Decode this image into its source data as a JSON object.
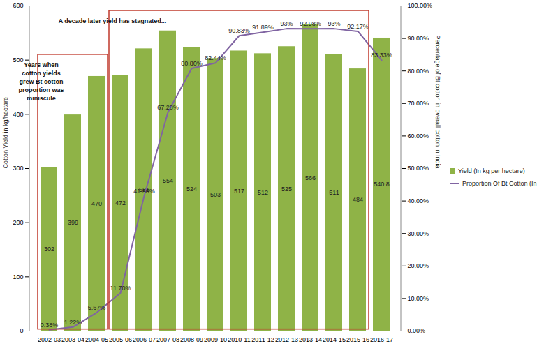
{
  "chart_data": {
    "type": "bar",
    "categories": [
      "2002-03",
      "2003-04",
      "2004-05",
      "2005-06",
      "2006-07",
      "2007-08",
      "2008-09",
      "2009-10",
      "2010-11",
      "2011-12",
      "2012-13",
      "2013-14",
      "2014-15",
      "2015-16",
      "2016-17"
    ],
    "series": [
      {
        "name": "Yield (In kg per hectare)",
        "type": "bar",
        "color": "#8fb347",
        "values": [
          302,
          399,
          470,
          472,
          521,
          554,
          524,
          503,
          517,
          512,
          525,
          566,
          511,
          484,
          540.8
        ]
      },
      {
        "name": "Proportion Of Bt Cotton (In %)",
        "type": "line",
        "axis": "y2",
        "color": "#8064a2",
        "values": [
          0.38,
          1.22,
          5.67,
          11.7,
          41.56,
          67.28,
          80.8,
          82.44,
          90.83,
          91.89,
          93,
          92.98,
          93,
          92.17,
          83.33
        ],
        "value_labels": [
          "0.38%",
          "1.22%",
          "5.67%",
          "11.70%",
          "41.56%",
          "67.28%",
          "80.80%",
          "82.44%",
          "90.83%",
          "91.89%",
          "93%",
          "92.98%",
          "93%",
          "92.17%",
          "83.33%"
        ]
      }
    ],
    "y_label": "Cotton Yield in kg/hectare",
    "y2_label": "Percentage of Bt cotton in overall cotton in India",
    "ylim": [
      0,
      600
    ],
    "yticks": [
      0,
      100,
      200,
      300,
      400,
      500,
      600
    ],
    "y2lim": [
      0,
      100
    ],
    "y2ticks": [
      {
        "value": 0,
        "label": "0.00%"
      },
      {
        "value": 10,
        "label": "10.00%"
      },
      {
        "value": 20,
        "label": "20.00%"
      },
      {
        "value": 30,
        "label": "30.00%"
      },
      {
        "value": 40,
        "label": "40.00%"
      },
      {
        "value": 50,
        "label": "50.00%"
      },
      {
        "value": 60,
        "label": "60.00%"
      },
      {
        "value": 70,
        "label": "70.00%"
      },
      {
        "value": 80,
        "label": "80.00%"
      },
      {
        "value": 90,
        "label": "90.00%"
      },
      {
        "value": 100,
        "label": "100.00%"
      }
    ],
    "data_labels": true,
    "grid": false,
    "legend": "right",
    "annotations": [
      {
        "text": "Years when cotton yields grew Bt cotton proportion was miniscule",
        "from": "2002-03",
        "to": "2004-05"
      },
      {
        "text": "A decade later yield has stagnated...",
        "from": "2005-06",
        "to": "2015-16"
      }
    ]
  }
}
